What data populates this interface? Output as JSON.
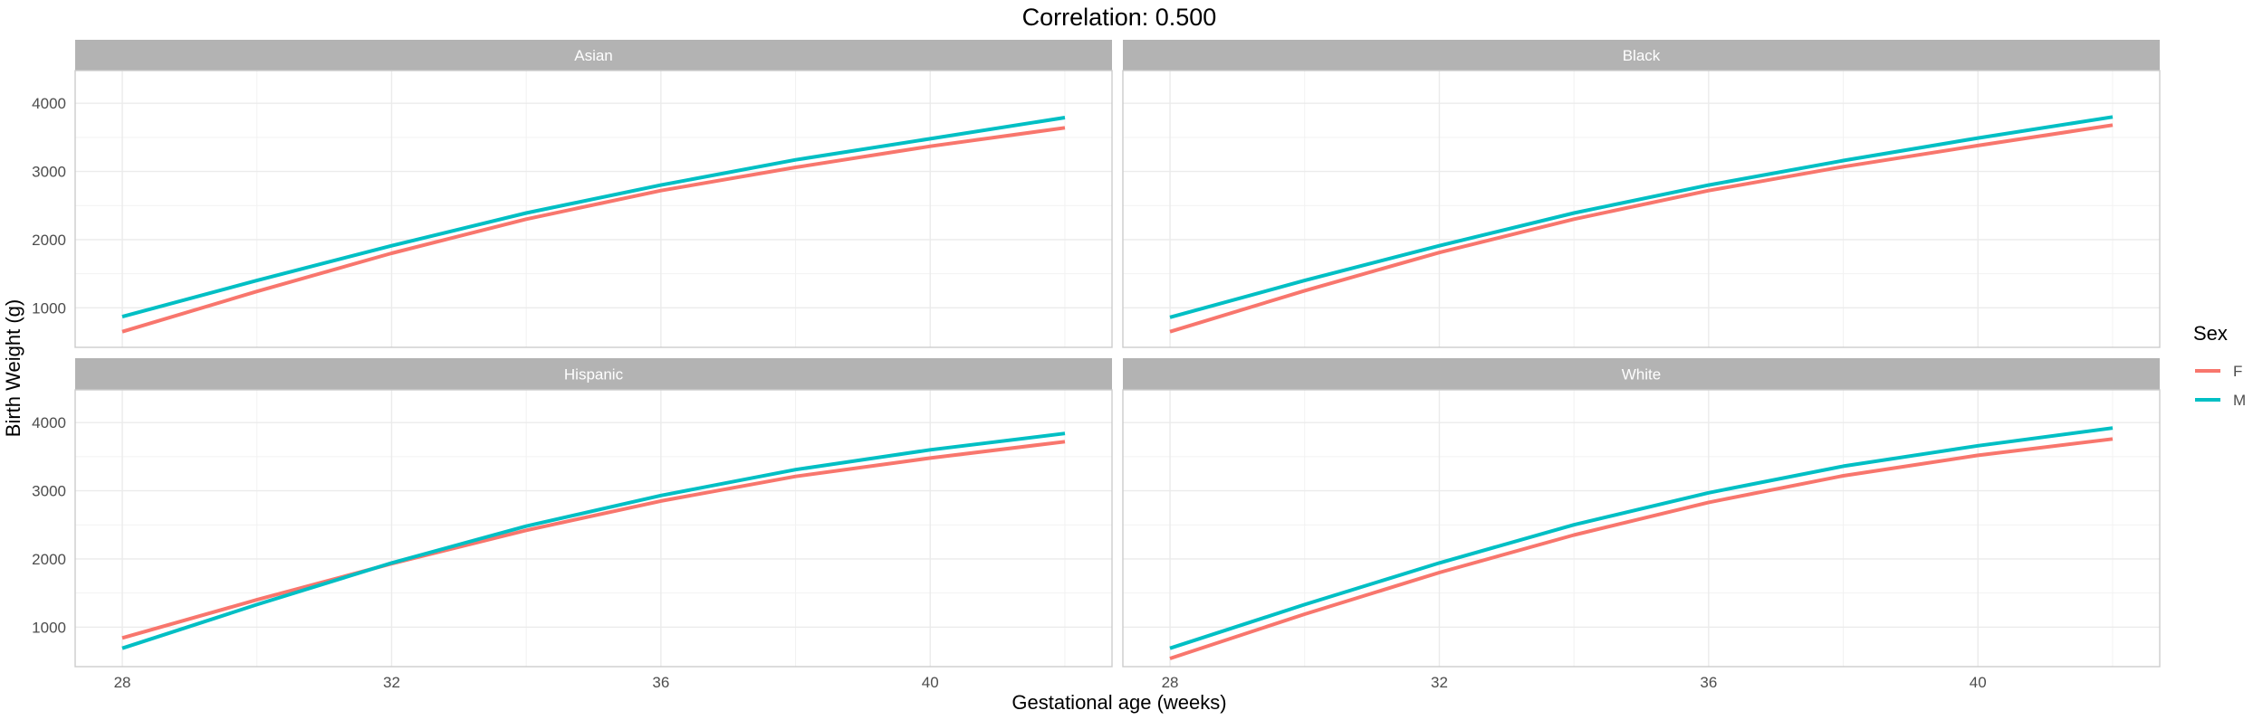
{
  "chart_data": {
    "type": "line",
    "title": "Correlation: 0.500",
    "xlabel": "Gestational age (weeks)",
    "ylabel": "Birth Weight (g)",
    "xlim": [
      27.3,
      42.7
    ],
    "ylim": [
      420,
      4000
    ],
    "x_ticks": [
      28,
      32,
      36,
      40
    ],
    "y_ticks": [
      1000,
      2000,
      3000,
      4000
    ],
    "grid": true,
    "legend": {
      "title": "Sex",
      "placement": "right",
      "entries": [
        {
          "label": "F",
          "color": "#F8766D"
        },
        {
          "label": "M",
          "color": "#00BFC4"
        }
      ]
    },
    "panels": [
      {
        "label": "Asian",
        "series": [
          {
            "name": "F",
            "color": "#F8766D",
            "x": [
              28,
              30,
              32,
              34,
              36,
              38,
              40,
              42
            ],
            "y": [
              650,
              1240,
              1800,
              2300,
              2720,
              3060,
              3370,
              3640
            ]
          },
          {
            "name": "M",
            "color": "#00BFC4",
            "x": [
              28,
              30,
              32,
              34,
              36,
              38,
              40,
              42
            ],
            "y": [
              870,
              1400,
              1910,
              2390,
              2800,
              3170,
              3480,
              3790
            ]
          }
        ]
      },
      {
        "label": "Black",
        "series": [
          {
            "name": "F",
            "color": "#F8766D",
            "x": [
              28,
              30,
              32,
              34,
              36,
              38,
              40,
              42
            ],
            "y": [
              650,
              1250,
              1810,
              2300,
              2720,
              3070,
              3380,
              3680
            ]
          },
          {
            "name": "M",
            "color": "#00BFC4",
            "x": [
              28,
              30,
              32,
              34,
              36,
              38,
              40,
              42
            ],
            "y": [
              860,
              1400,
              1910,
              2390,
              2800,
              3160,
              3490,
              3800
            ]
          }
        ]
      },
      {
        "label": "Hispanic",
        "series": [
          {
            "name": "F",
            "color": "#F8766D",
            "x": [
              28,
              30,
              32,
              34,
              36,
              38,
              40,
              42
            ],
            "y": [
              840,
              1400,
              1930,
              2420,
              2850,
              3210,
              3480,
              3720
            ]
          },
          {
            "name": "M",
            "color": "#00BFC4",
            "x": [
              28,
              30,
              32,
              34,
              36,
              38,
              40,
              42
            ],
            "y": [
              690,
              1330,
              1940,
              2480,
              2930,
              3310,
              3600,
              3840
            ]
          }
        ]
      },
      {
        "label": "White",
        "series": [
          {
            "name": "F",
            "color": "#F8766D",
            "x": [
              28,
              30,
              32,
              34,
              36,
              38,
              40,
              42
            ],
            "y": [
              540,
              1190,
              1800,
              2350,
              2830,
              3220,
              3520,
              3760
            ]
          },
          {
            "name": "M",
            "color": "#00BFC4",
            "x": [
              28,
              30,
              32,
              34,
              36,
              38,
              40,
              42
            ],
            "y": [
              690,
              1330,
              1940,
              2500,
              2970,
              3360,
              3660,
              3920
            ]
          }
        ]
      }
    ]
  }
}
